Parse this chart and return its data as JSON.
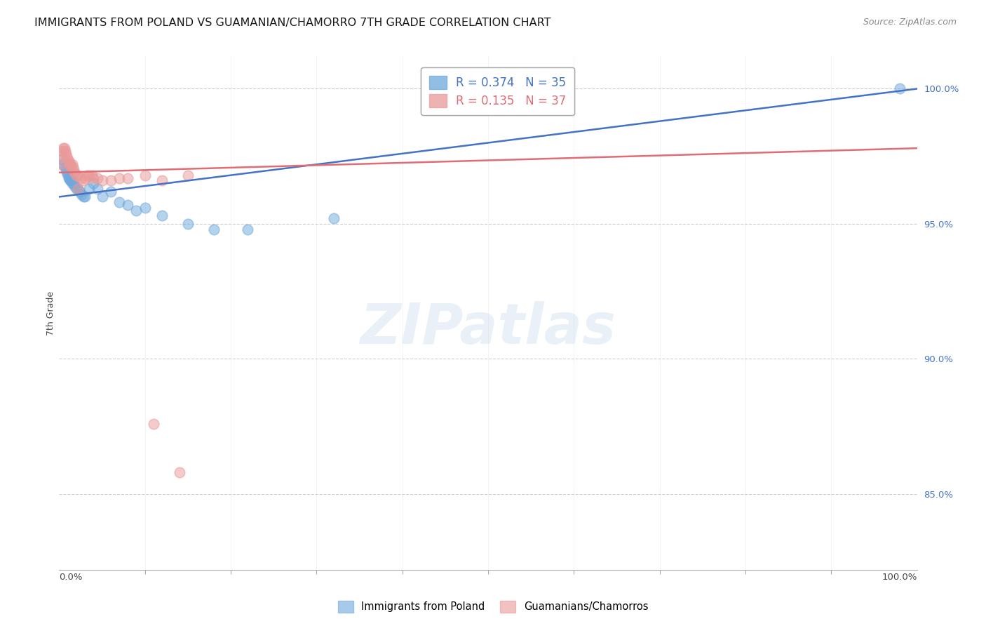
{
  "title": "IMMIGRANTS FROM POLAND VS GUAMANIAN/CHAMORRO 7TH GRADE CORRELATION CHART",
  "source": "Source: ZipAtlas.com",
  "ylabel": "7th Grade",
  "ytick_values": [
    0.85,
    0.9,
    0.95,
    1.0
  ],
  "ytick_labels": [
    "85.0%",
    "90.0%",
    "95.0%",
    "100.0%"
  ],
  "xlim": [
    0.0,
    1.0
  ],
  "ylim": [
    0.822,
    1.012
  ],
  "legend_R_label1": "R = 0.374   N = 35",
  "legend_R_label2": "R = 0.135   N = 37",
  "legend_label1": "Immigrants from Poland",
  "legend_label2": "Guamanians/Chamorros",
  "blue_color": "#6fa8dc",
  "pink_color": "#ea9999",
  "blue_line_color": "#4472c4",
  "pink_line_color": "#e06c75",
  "blue_scatter_x": [
    0.003,
    0.005,
    0.007,
    0.008,
    0.009,
    0.01,
    0.011,
    0.012,
    0.013,
    0.014,
    0.015,
    0.016,
    0.017,
    0.018,
    0.02,
    0.022,
    0.024,
    0.026,
    0.028,
    0.03,
    0.035,
    0.04,
    0.045,
    0.05,
    0.06,
    0.07,
    0.08,
    0.09,
    0.1,
    0.12,
    0.15,
    0.18,
    0.22,
    0.32,
    0.98
  ],
  "blue_scatter_y": [
    0.974,
    0.972,
    0.971,
    0.97,
    0.969,
    0.968,
    0.967,
    0.967,
    0.966,
    0.966,
    0.965,
    0.966,
    0.965,
    0.964,
    0.963,
    0.963,
    0.962,
    0.961,
    0.96,
    0.96,
    0.963,
    0.965,
    0.963,
    0.96,
    0.962,
    0.958,
    0.957,
    0.955,
    0.956,
    0.953,
    0.95,
    0.948,
    0.948,
    0.952,
    1.0
  ],
  "pink_scatter_x": [
    0.002,
    0.003,
    0.004,
    0.005,
    0.006,
    0.007,
    0.008,
    0.009,
    0.01,
    0.011,
    0.012,
    0.013,
    0.014,
    0.015,
    0.016,
    0.017,
    0.018,
    0.02,
    0.022,
    0.025,
    0.028,
    0.03,
    0.032,
    0.035,
    0.038,
    0.04,
    0.045,
    0.05,
    0.06,
    0.07,
    0.08,
    0.1,
    0.12,
    0.15,
    0.022,
    0.11,
    0.14
  ],
  "pink_scatter_y": [
    0.972,
    0.975,
    0.977,
    0.978,
    0.978,
    0.977,
    0.976,
    0.975,
    0.974,
    0.973,
    0.972,
    0.972,
    0.971,
    0.972,
    0.971,
    0.97,
    0.969,
    0.968,
    0.968,
    0.967,
    0.966,
    0.967,
    0.968,
    0.968,
    0.968,
    0.967,
    0.967,
    0.966,
    0.966,
    0.967,
    0.967,
    0.968,
    0.966,
    0.968,
    0.963,
    0.876,
    0.858
  ],
  "blue_line_x0": 0.0,
  "blue_line_x1": 1.0,
  "blue_line_y0": 0.96,
  "blue_line_y1": 1.0,
  "pink_line_x0": 0.0,
  "pink_line_x1": 1.0,
  "pink_line_y0": 0.969,
  "pink_line_y1": 0.978,
  "dot_size": 110,
  "dot_alpha": 0.5,
  "line_width": 1.8,
  "title_fontsize": 11.5,
  "source_fontsize": 9,
  "legend_fontsize": 12,
  "tick_fontsize": 9.5,
  "ylabel_fontsize": 9,
  "bg_color": "#ffffff",
  "grid_color": "#cccccc",
  "right_tick_color": "#4472c4",
  "xtick_positions": [
    0.1,
    0.2,
    0.3,
    0.4,
    0.5,
    0.6,
    0.7,
    0.8,
    0.9
  ]
}
